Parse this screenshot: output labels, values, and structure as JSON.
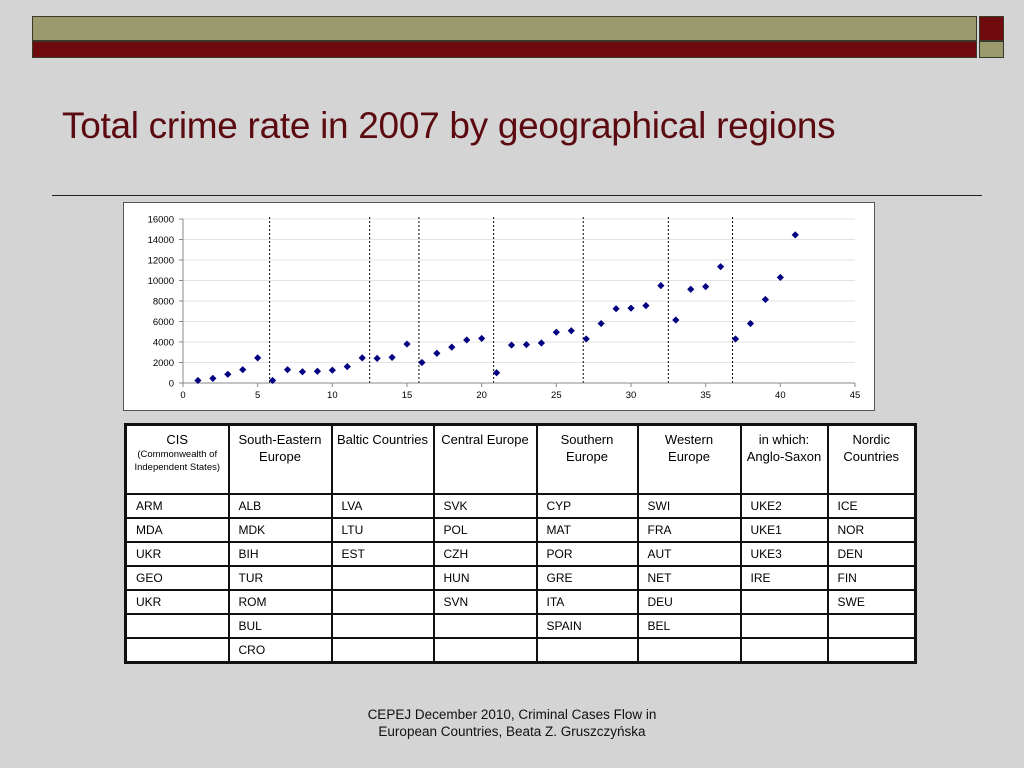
{
  "slide": {
    "title": "Total crime rate in 2007 by geographical regions",
    "footer_line1": "CEPEJ December 2010, Criminal Cases Flow in",
    "footer_line2": "European Countries, Beata Z. Gruszczyńska",
    "colors": {
      "title": "#5b0a10",
      "olive": "#9b9a6c",
      "maroon": "#6f0a0f",
      "background": "#d4d4d4",
      "marker": "#000080"
    }
  },
  "chart_data": {
    "type": "scatter",
    "title": "",
    "xlabel": "",
    "ylabel": "",
    "xlim": [
      0,
      45
    ],
    "ylim": [
      0,
      16000
    ],
    "x_ticks": [
      0,
      5,
      10,
      15,
      20,
      25,
      30,
      35,
      40,
      45
    ],
    "y_ticks": [
      0,
      2000,
      4000,
      6000,
      8000,
      10000,
      12000,
      14000,
      16000
    ],
    "grid": "horizontal",
    "marker": "diamond",
    "group_separators_x": [
      5.8,
      12.5,
      15.8,
      20.8,
      26.8,
      32.5,
      36.8
    ],
    "points": [
      {
        "x": 1,
        "y": 250
      },
      {
        "x": 2,
        "y": 450
      },
      {
        "x": 3,
        "y": 850
      },
      {
        "x": 4,
        "y": 1300
      },
      {
        "x": 5,
        "y": 2450
      },
      {
        "x": 6,
        "y": 250
      },
      {
        "x": 7,
        "y": 1300
      },
      {
        "x": 8,
        "y": 1100
      },
      {
        "x": 9,
        "y": 1150
      },
      {
        "x": 10,
        "y": 1250
      },
      {
        "x": 11,
        "y": 1600
      },
      {
        "x": 12,
        "y": 2450
      },
      {
        "x": 13,
        "y": 2400
      },
      {
        "x": 14,
        "y": 2500
      },
      {
        "x": 15,
        "y": 3800
      },
      {
        "x": 16,
        "y": 2000
      },
      {
        "x": 17,
        "y": 2900
      },
      {
        "x": 18,
        "y": 3500
      },
      {
        "x": 19,
        "y": 4200
      },
      {
        "x": 20,
        "y": 4350
      },
      {
        "x": 21,
        "y": 1000
      },
      {
        "x": 22,
        "y": 3700
      },
      {
        "x": 23,
        "y": 3750
      },
      {
        "x": 24,
        "y": 3900
      },
      {
        "x": 25,
        "y": 4950
      },
      {
        "x": 26,
        "y": 5100
      },
      {
        "x": 27,
        "y": 4300
      },
      {
        "x": 28,
        "y": 5800
      },
      {
        "x": 29,
        "y": 7250
      },
      {
        "x": 30,
        "y": 7300
      },
      {
        "x": 31,
        "y": 7550
      },
      {
        "x": 32,
        "y": 9500
      },
      {
        "x": 33,
        "y": 6150
      },
      {
        "x": 34,
        "y": 9150
      },
      {
        "x": 35,
        "y": 9400
      },
      {
        "x": 36,
        "y": 11350
      },
      {
        "x": 37,
        "y": 4300
      },
      {
        "x": 38,
        "y": 5800
      },
      {
        "x": 39,
        "y": 8150
      },
      {
        "x": 40,
        "y": 10300
      },
      {
        "x": 41,
        "y": 14450
      }
    ]
  },
  "table": {
    "headers": [
      {
        "main": "CIS",
        "sub": "(Commonwealth of Independent States)"
      },
      {
        "main": "South-Eastern Europe"
      },
      {
        "main": "Baltic Countries"
      },
      {
        "main": "Central Europe"
      },
      {
        "main": "Southern Europe"
      },
      {
        "main": "Western Europe"
      },
      {
        "main": "in which: Anglo-Saxon"
      },
      {
        "main": "Nordic Countries"
      }
    ],
    "rows": [
      [
        "ARM",
        "ALB",
        "LVA",
        "SVK",
        "CYP",
        "SWI",
        "UKE2",
        "ICE"
      ],
      [
        "MDA",
        "MDK",
        "LTU",
        "POL",
        "MAT",
        "FRA",
        "UKE1",
        "NOR"
      ],
      [
        "UKR",
        "BIH",
        "EST",
        "CZH",
        "POR",
        "AUT",
        "UKE3",
        "DEN"
      ],
      [
        "GEO",
        "TUR",
        "",
        "HUN",
        "GRE",
        "NET",
        "IRE",
        "FIN"
      ],
      [
        "UKR",
        "ROM",
        "",
        "SVN",
        "ITA",
        "DEU",
        "",
        "SWE"
      ],
      [
        "",
        "BUL",
        "",
        "",
        "SPAIN",
        "BEL",
        "",
        ""
      ],
      [
        "",
        "CRO",
        "",
        "",
        "",
        "",
        "",
        ""
      ]
    ]
  }
}
